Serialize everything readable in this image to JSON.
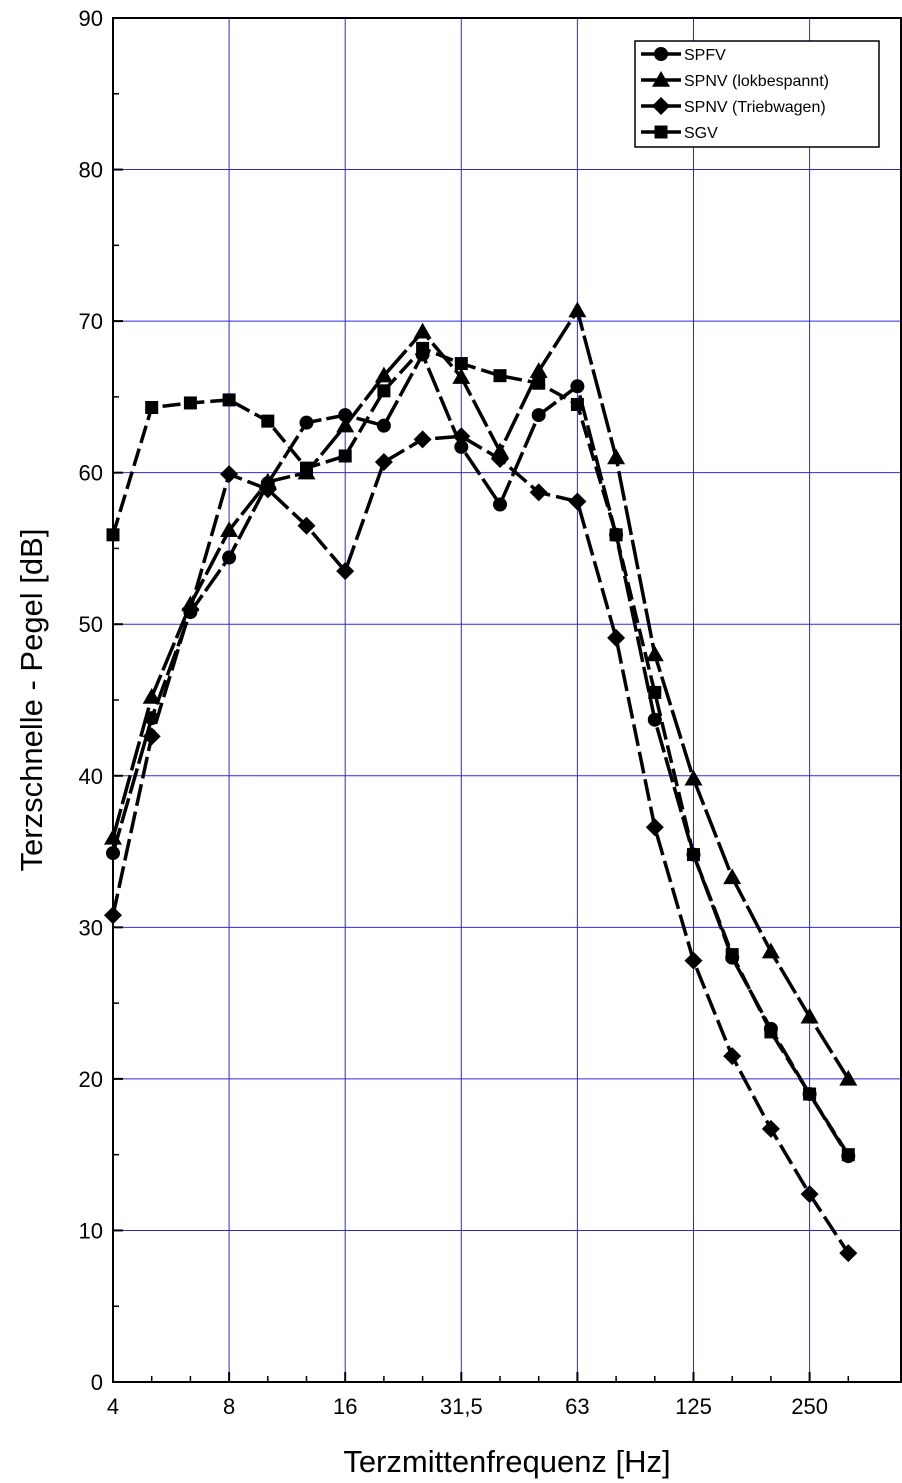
{
  "chart_data": {
    "type": "line",
    "xlabel": "Terzmittenfrequenz [Hz]",
    "ylabel": "Terzschnelle - Pegel [dB]",
    "ylim": [
      0,
      90
    ],
    "yticks": [
      "0",
      "10",
      "20",
      "30",
      "40",
      "50",
      "60",
      "70",
      "80",
      "90"
    ],
    "xtick_labels": [
      "4",
      "8",
      "16",
      "31,5",
      "63",
      "125",
      "250"
    ],
    "x_band_centers_hz": [
      "4",
      "5",
      "6,3",
      "8",
      "10",
      "12,5",
      "16",
      "20",
      "25",
      "31,5",
      "40",
      "50",
      "63",
      "80",
      "100",
      "125",
      "160",
      "200",
      "250",
      "315"
    ],
    "x_scale": "log (third-octave bands)",
    "grid": true,
    "legend_position": "top-right",
    "series": [
      {
        "name": "SPFV",
        "marker": "circle",
        "values": [
          34.9,
          43.8,
          50.8,
          54.4,
          59.3,
          63.3,
          63.8,
          63.1,
          67.8,
          61.7,
          57.9,
          63.8,
          65.7,
          55.9,
          43.7,
          34.8,
          28.0,
          23.3,
          19.0,
          14.9
        ]
      },
      {
        "name": "SPNV (lokbespannt)",
        "marker": "triangle",
        "values": [
          35.9,
          45.2,
          51.3,
          56.2,
          59.4,
          60.0,
          63.1,
          66.4,
          69.3,
          66.3,
          61.4,
          66.7,
          70.7,
          61.0,
          48.0,
          39.8,
          33.3,
          28.4,
          24.1,
          20.0
        ]
      },
      {
        "name": "SPNV (Triebwagen)",
        "marker": "diamond",
        "values": [
          30.8,
          42.6,
          51.0,
          59.9,
          58.9,
          56.5,
          53.5,
          60.7,
          62.2,
          62.4,
          60.9,
          58.7,
          58.1,
          49.1,
          36.6,
          27.8,
          21.5,
          16.7,
          12.4,
          8.5
        ]
      },
      {
        "name": "SGV",
        "marker": "square",
        "values": [
          55.9,
          64.3,
          64.6,
          64.8,
          63.4,
          60.3,
          61.1,
          65.4,
          68.2,
          67.2,
          66.4,
          65.9,
          64.5,
          55.9,
          45.5,
          34.8,
          28.2,
          23.1,
          19.0,
          15.0
        ]
      }
    ]
  }
}
